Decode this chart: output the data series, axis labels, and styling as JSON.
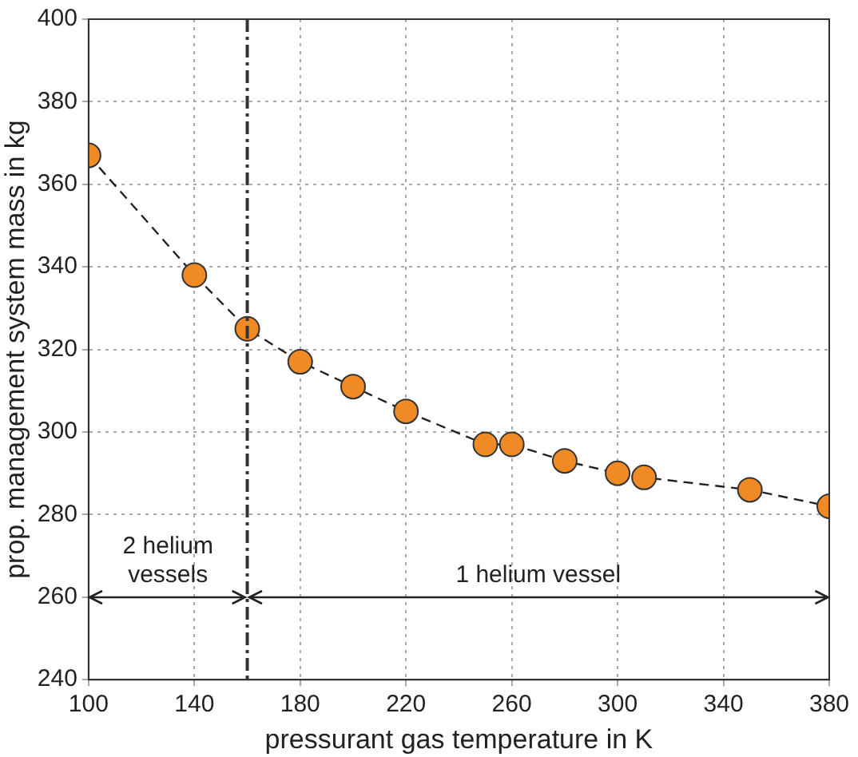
{
  "chart_data": {
    "type": "line",
    "xlabel": "pressurant gas temperature in K",
    "ylabel": "prop. management system mass in kg",
    "x": [
      100,
      140,
      160,
      180,
      200,
      220,
      250,
      260,
      280,
      300,
      310,
      350,
      380
    ],
    "series": [
      {
        "color": "#f08a24",
        "values": [
          367,
          338,
          325,
          317,
          311,
          305,
          297,
          297,
          293,
          290,
          289,
          286,
          282
        ]
      }
    ],
    "xlim": [
      100,
      380
    ],
    "xticks": [
      100,
      140,
      180,
      220,
      260,
      300,
      340,
      380
    ],
    "ylim": [
      240,
      400
    ],
    "yticks": [
      240,
      260,
      280,
      300,
      320,
      340,
      360,
      380,
      400
    ],
    "grid": true,
    "marker": "circle",
    "line_style": "dashed",
    "legend": false,
    "ref_lines": [
      {
        "axis": "x",
        "value": 160,
        "line_style": "dashdot",
        "color": "#333333"
      }
    ],
    "annotations": [
      "2 helium vessels",
      "1 helium vessel"
    ]
  }
}
